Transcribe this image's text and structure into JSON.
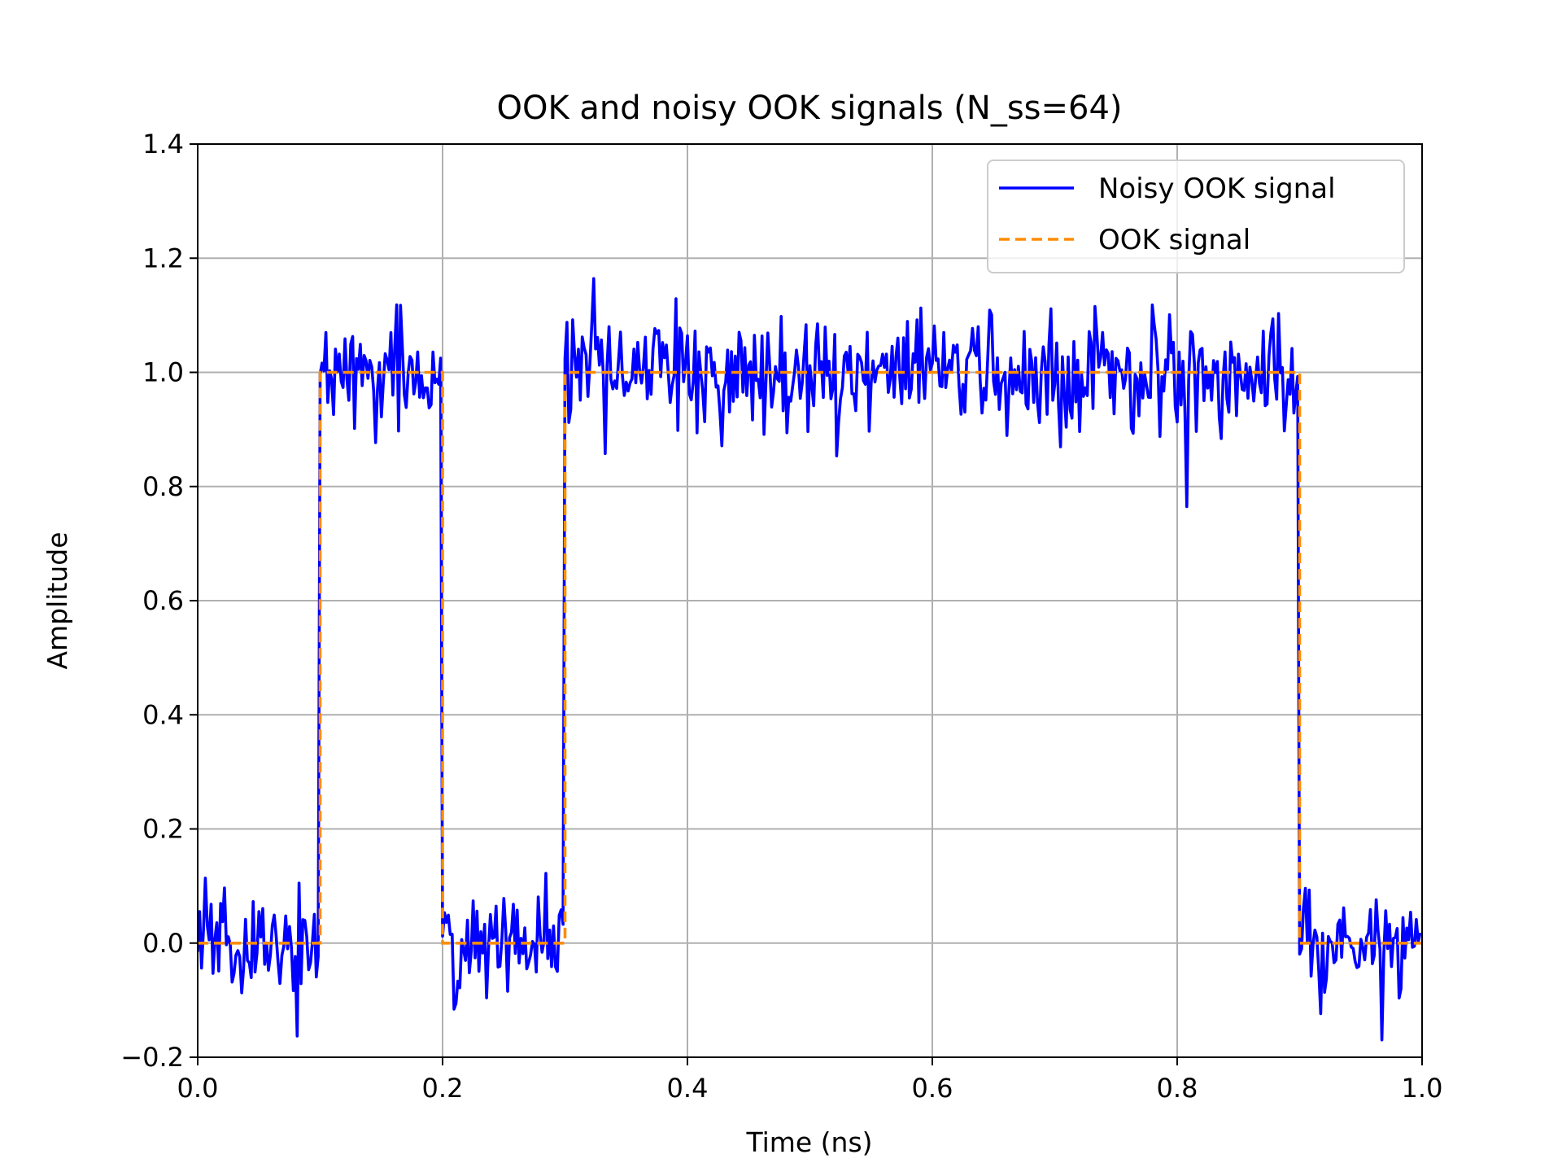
{
  "chart_data": {
    "type": "line",
    "title": "OOK and noisy OOK signals (N_ss=64)",
    "xlabel": "Time (ns)",
    "ylabel": "Amplitude",
    "xlim": [
      0.0,
      1.0
    ],
    "ylim": [
      -0.2,
      1.4
    ],
    "xticks": [
      "0.0",
      "0.2",
      "0.4",
      "0.6",
      "0.8",
      "1.0"
    ],
    "yticks": [
      "−0.2",
      "0.0",
      "0.2",
      "0.4",
      "0.6",
      "0.8",
      "1.0",
      "1.2",
      "1.4"
    ],
    "grid": true,
    "legend_position": "upper right",
    "bits": [
      0,
      1,
      0,
      1,
      1,
      1,
      1,
      1,
      1,
      0
    ],
    "bit_duration_ns": 0.1,
    "samples_per_bit": 64,
    "noise_std": 0.05,
    "series": [
      {
        "name": "Noisy OOK signal",
        "color": "#0000ff",
        "style": "solid"
      },
      {
        "name": "OOK signal",
        "color": "#ff8c00",
        "style": "dashed"
      }
    ]
  }
}
